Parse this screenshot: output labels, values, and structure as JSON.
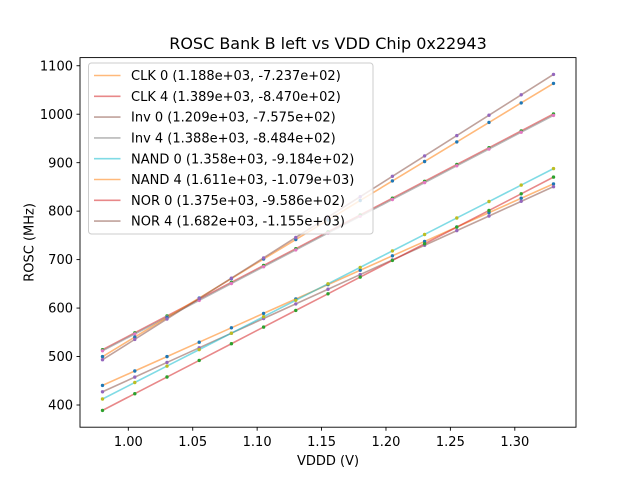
{
  "chart_data": {
    "type": "line",
    "title": "ROSC Bank B left vs VDD Chip 0x22943",
    "xlabel": "VDDD (V)",
    "ylabel": "ROSC (MHz)",
    "xlim": [
      0.9625,
      1.3475
    ],
    "ylim": [
      354.2,
      1116.8
    ],
    "grid": false,
    "legend_position": "upper left",
    "xticks": {
      "values": [
        1.0,
        1.05,
        1.1,
        1.15,
        1.2,
        1.25,
        1.3
      ],
      "labels": [
        "1.00",
        "1.05",
        "1.10",
        "1.15",
        "1.20",
        "1.25",
        "1.30"
      ]
    },
    "yticks": {
      "values": [
        400,
        500,
        600,
        700,
        800,
        900,
        1000,
        1100
      ],
      "labels": [
        "400",
        "500",
        "600",
        "700",
        "800",
        "900",
        "1000",
        "1100"
      ]
    },
    "x": [
      0.98,
      1.005,
      1.03,
      1.055,
      1.08,
      1.105,
      1.13,
      1.155,
      1.18,
      1.205,
      1.23,
      1.255,
      1.28,
      1.305,
      1.33
    ],
    "series": [
      {
        "name": "CLK 0",
        "label": "CLK 0 (1.188e+03, -7.237e+02)",
        "slope": 1188,
        "intercept": -723.7,
        "line_color": "#ff7f0e",
        "marker_color": "#1f77b4",
        "values": [
          440.5,
          470.2,
          499.9,
          529.6,
          559.3,
          589.0,
          618.7,
          648.4,
          678.1,
          707.8,
          737.5,
          767.2,
          796.9,
          826.6,
          856.3
        ]
      },
      {
        "name": "CLK 4",
        "label": "CLK 4 (1.389e+03, -8.470e+02)",
        "slope": 1389,
        "intercept": -847.0,
        "line_color": "#d62728",
        "marker_color": "#2ca02c",
        "values": [
          514.2,
          548.9,
          583.7,
          618.4,
          653.1,
          687.8,
          722.6,
          757.3,
          792.0,
          826.7,
          861.5,
          896.2,
          930.9,
          965.6,
          1000.4
        ]
      },
      {
        "name": "Inv 0",
        "label": "Inv 0 (1.209e+03, -7.575e+02)",
        "slope": 1209,
        "intercept": -757.5,
        "line_color": "#8c564b",
        "marker_color": "#9467bd",
        "values": [
          427.3,
          457.5,
          487.8,
          518.0,
          548.2,
          578.4,
          608.7,
          638.9,
          669.1,
          699.3,
          729.6,
          759.8,
          790.0,
          820.2,
          850.5
        ]
      },
      {
        "name": "Inv 4",
        "label": "Inv 4 (1.388e+03, -8.484e+02)",
        "slope": 1388,
        "intercept": -848.4,
        "line_color": "#7f7f7f",
        "marker_color": "#e377c2",
        "values": [
          511.8,
          546.5,
          581.2,
          615.9,
          650.6,
          685.3,
          720.0,
          754.7,
          789.4,
          824.1,
          858.8,
          893.5,
          928.2,
          962.9,
          997.6
        ]
      },
      {
        "name": "NAND 0",
        "label": "NAND 0 (1.358e+03, -9.184e+02)",
        "slope": 1358,
        "intercept": -918.4,
        "line_color": "#17becf",
        "marker_color": "#bcbd22",
        "values": [
          412.4,
          446.4,
          480.3,
          514.3,
          548.2,
          582.2,
          616.1,
          650.1,
          684.0,
          718.0,
          751.9,
          785.9,
          819.8,
          853.8,
          887.7
        ]
      },
      {
        "name": "NAND 4",
        "label": "NAND 4 (1.611e+03, -1.079e+03)",
        "slope": 1611,
        "intercept": -1079,
        "line_color": "#ff7f0e",
        "marker_color": "#1f77b4",
        "values": [
          499.8,
          540.1,
          580.3,
          620.6,
          660.9,
          701.2,
          741.4,
          781.7,
          822.0,
          862.3,
          902.5,
          942.8,
          983.1,
          1023.4,
          1063.6
        ]
      },
      {
        "name": "NOR 0",
        "label": "NOR 0 (1.375e+03, -9.586e+02)",
        "slope": 1375,
        "intercept": -958.6,
        "line_color": "#d62728",
        "marker_color": "#2ca02c",
        "values": [
          388.9,
          423.3,
          457.7,
          492.0,
          526.4,
          560.8,
          595.2,
          629.5,
          663.9,
          698.3,
          732.7,
          767.0,
          801.4,
          835.8,
          870.2
        ]
      },
      {
        "name": "NOR 4",
        "label": "NOR 4 (1.682e+03, -1.155e+03)",
        "slope": 1682,
        "intercept": -1155,
        "line_color": "#8c564b",
        "marker_color": "#9467bd",
        "values": [
          493.4,
          535.4,
          577.5,
          619.5,
          661.6,
          703.6,
          745.7,
          787.7,
          829.8,
          871.8,
          913.9,
          955.9,
          998.0,
          1040.0,
          1082.1
        ]
      }
    ],
    "style": {
      "line_alpha": 0.55,
      "line_width": 1.6,
      "marker_radius": 1.7,
      "spine_color": "#000000",
      "legend_edge_color": "#cccccc",
      "legend_face_color": "#ffffff",
      "legend_face_alpha": 0.8
    }
  }
}
